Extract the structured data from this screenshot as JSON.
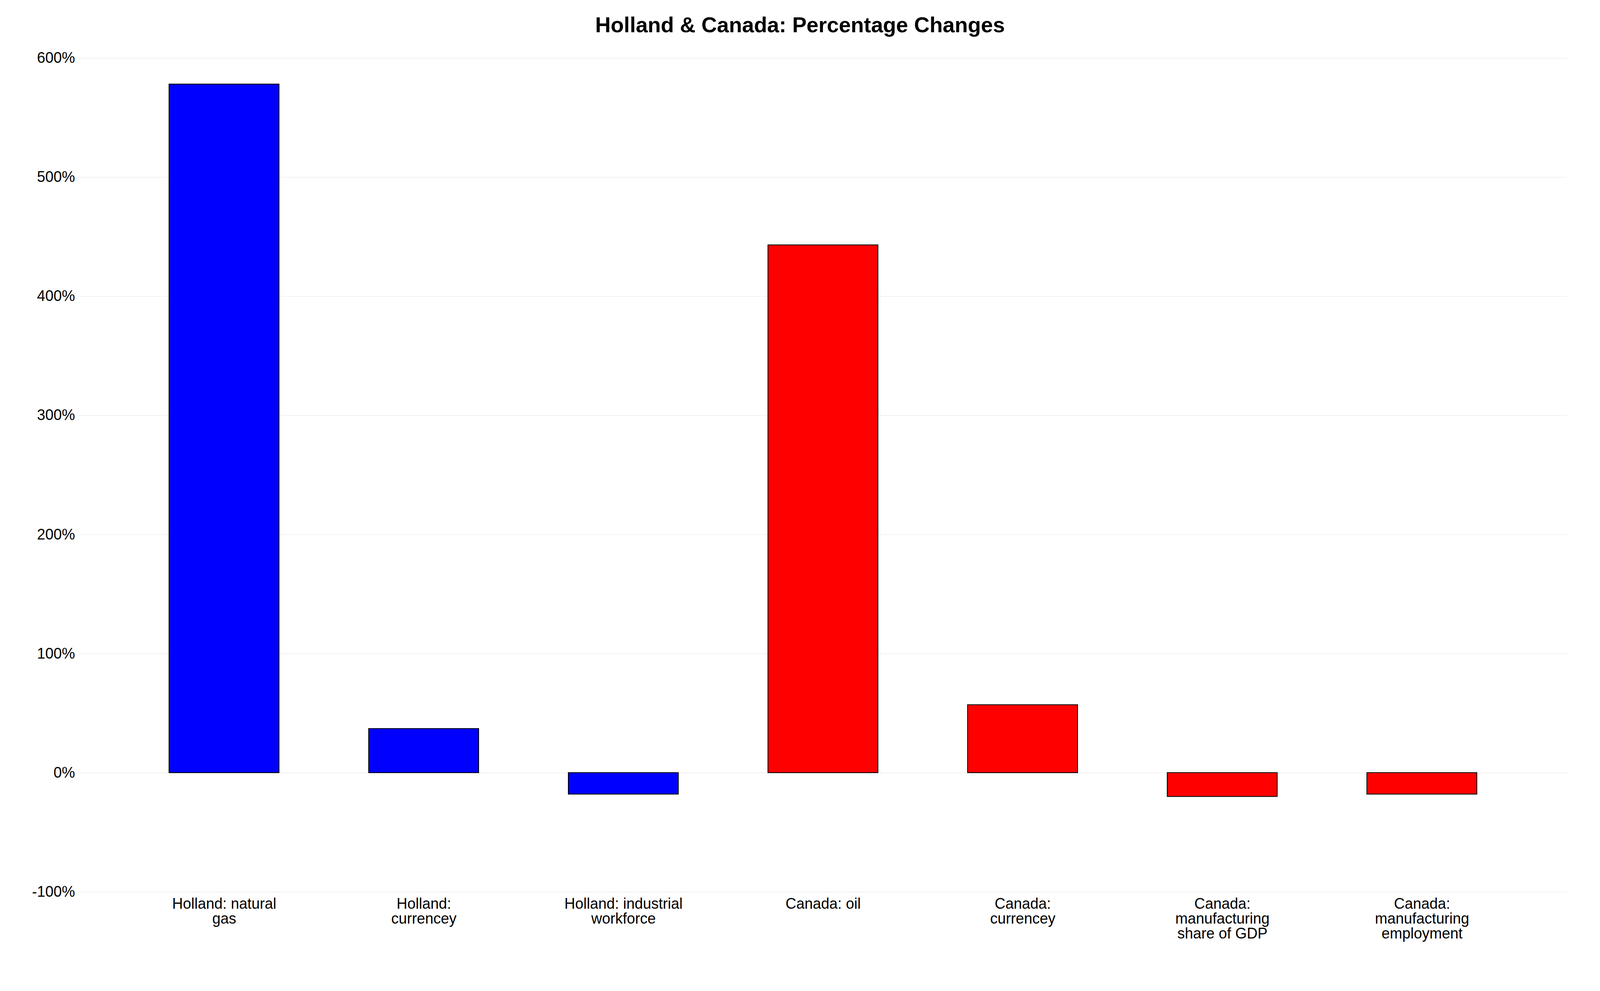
{
  "chart_data": {
    "type": "bar",
    "title": "Holland & Canada: Percentage Changes",
    "categories": [
      "Holland: natural\ngas",
      "Holland:\ncurrencey",
      "Holland: industrial\nworkforce",
      "Canada: oil",
      "Canada:\ncurrencey",
      "Canada:\nmanufacturing\nshare of GDP",
      "Canada:\nmanufacturing\nemployment"
    ],
    "values": [
      578,
      37,
      -18,
      443,
      57,
      -20,
      -18
    ],
    "colors": [
      "#0000ff",
      "#0000ff",
      "#0000ff",
      "#ff0000",
      "#ff0000",
      "#ff0000",
      "#ff0000"
    ],
    "ylim": [
      -100,
      600
    ],
    "yticks": [
      {
        "value": -100,
        "label": "-100%"
      },
      {
        "value": 0,
        "label": "0%"
      },
      {
        "value": 100,
        "label": "100%"
      },
      {
        "value": 200,
        "label": "200%"
      },
      {
        "value": 300,
        "label": "300%"
      },
      {
        "value": 400,
        "label": "400%"
      },
      {
        "value": 500,
        "label": "500%"
      },
      {
        "value": 600,
        "label": "600%"
      }
    ],
    "grid": true
  }
}
